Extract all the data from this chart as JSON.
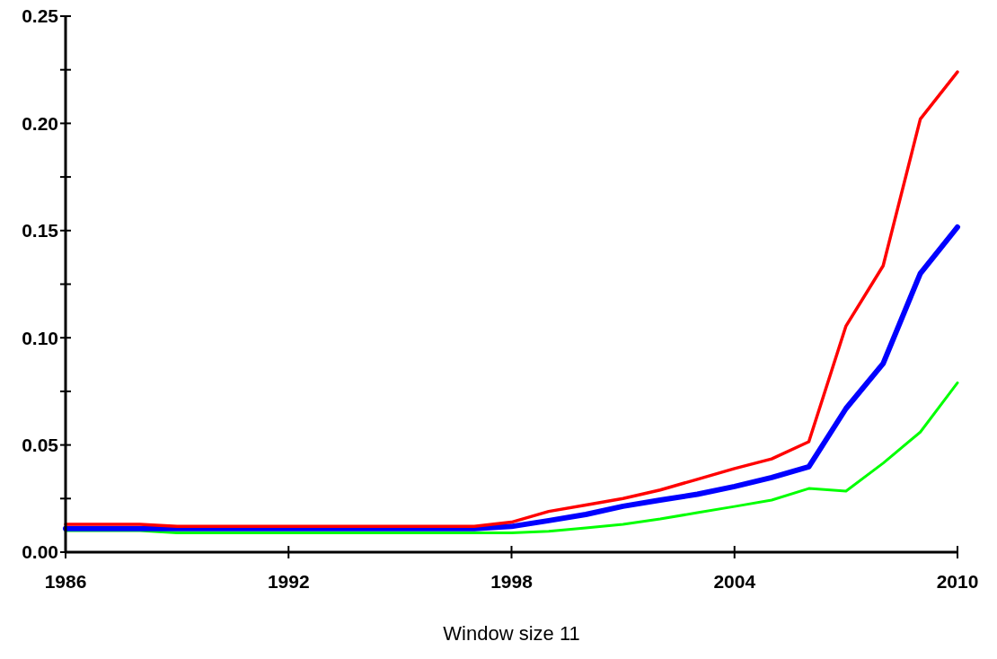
{
  "chart_data": {
    "type": "line",
    "xlabel": "Window size 11",
    "x": [
      1986,
      1987,
      1988,
      1989,
      1990,
      1991,
      1992,
      1993,
      1994,
      1995,
      1996,
      1997,
      1998,
      1999,
      2000,
      2001,
      2002,
      2003,
      2004,
      2005,
      2006,
      2007,
      2008,
      2009,
      2010
    ],
    "xlim": [
      1986,
      2010
    ],
    "xticks": [
      1986,
      1992,
      1998,
      2004,
      2010
    ],
    "ylim": [
      0,
      0.25
    ],
    "yticks": [
      {
        "value": 0,
        "label": "0.00"
      },
      {
        "value": 0.025,
        "label": null
      },
      {
        "value": 0.05,
        "label": "0.05"
      },
      {
        "value": 0.075,
        "label": null
      },
      {
        "value": 0.1,
        "label": "0.10"
      },
      {
        "value": 0.125,
        "label": null
      },
      {
        "value": 0.15,
        "label": "0.15"
      },
      {
        "value": 0.175,
        "label": null
      },
      {
        "value": 0.2,
        "label": "0.20"
      },
      {
        "value": 0.225,
        "label": null
      },
      {
        "value": 0.25,
        "label": "0.25"
      }
    ],
    "grid": false,
    "line_style": "solid",
    "series": [
      {
        "color": "#00ff00",
        "values": [
          0.01,
          0.01,
          0.01,
          0.009,
          0.009,
          0.009,
          0.009,
          0.009,
          0.009,
          0.009,
          0.009,
          0.009,
          0.009,
          0.0097,
          0.0113,
          0.013,
          0.0155,
          0.0184,
          0.0213,
          0.0243,
          0.0297,
          0.0285,
          0.0415,
          0.056,
          0.079
        ]
      },
      {
        "color": "#0000ff",
        "values": [
          0.011,
          0.011,
          0.011,
          0.011,
          0.011,
          0.011,
          0.011,
          0.011,
          0.011,
          0.011,
          0.011,
          0.011,
          0.012,
          0.0147,
          0.0176,
          0.0214,
          0.0243,
          0.027,
          0.0306,
          0.0348,
          0.0398,
          0.067,
          0.088,
          0.13,
          0.1516
        ]
      },
      {
        "color": "#ff0000",
        "values": [
          0.013,
          0.013,
          0.013,
          0.012,
          0.012,
          0.012,
          0.012,
          0.012,
          0.012,
          0.012,
          0.012,
          0.012,
          0.014,
          0.019,
          0.022,
          0.025,
          0.029,
          0.034,
          0.039,
          0.0435,
          0.0515,
          0.1055,
          0.1336,
          0.202,
          0.224
        ]
      }
    ]
  }
}
